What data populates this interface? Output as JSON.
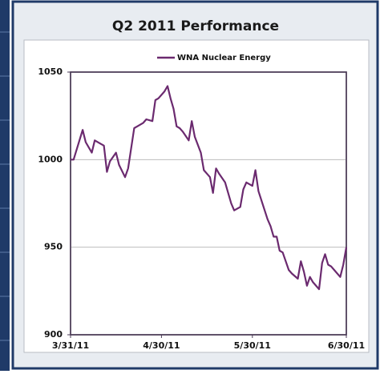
{
  "chart_data": {
    "type": "line",
    "title": "Q2 2011 Performance",
    "x": [
      "3/31/11",
      "4/1/11",
      "4/4/11",
      "4/5/11",
      "4/7/11",
      "4/8/11",
      "4/10/11",
      "4/11/11",
      "4/12/11",
      "4/13/11",
      "4/15/11",
      "4/16/11",
      "4/18/11",
      "4/19/11",
      "4/21/11",
      "4/22/11",
      "4/24/11",
      "4/25/11",
      "4/27/11",
      "4/28/11",
      "4/29/11",
      "5/1/11",
      "5/2/11",
      "5/3/11",
      "5/4/11",
      "5/5/11",
      "5/6/11",
      "5/7/11",
      "5/9/11",
      "5/10/11",
      "5/11/11",
      "5/13/11",
      "5/14/11",
      "5/15/11",
      "5/16/11",
      "5/17/11",
      "5/18/11",
      "5/19/11",
      "5/21/11",
      "5/23/11",
      "5/24/11",
      "5/26/11",
      "5/27/11",
      "5/28/11",
      "5/29/11",
      "5/30/11",
      "5/31/11",
      "6/1/11",
      "6/4/11",
      "6/5/11",
      "6/6/11",
      "6/7/11",
      "6/8/11",
      "6/9/11",
      "6/11/11",
      "6/12/11",
      "6/14/11",
      "6/15/11",
      "6/16/11",
      "6/17/11",
      "6/18/11",
      "6/19/11",
      "6/21/11",
      "6/22/11",
      "6/23/11",
      "6/24/11",
      "6/25/11",
      "6/26/11",
      "6/28/11",
      "6/29/11",
      "6/30/11"
    ],
    "series": [
      {
        "name": "WNA Nuclear Energy",
        "color": "#6b2a6f",
        "values": [
          1000,
          1000,
          1017,
          1010,
          1004,
          1011,
          1009,
          1008,
          993,
          999,
          1004,
          997,
          990,
          995,
          1018,
          1019,
          1021,
          1023,
          1022,
          1034,
          1035,
          1039,
          1042,
          1035,
          1029,
          1019,
          1018,
          1016,
          1011,
          1022,
          1013,
          1004,
          994,
          992,
          990,
          981,
          995,
          992,
          987,
          975,
          971,
          973,
          983,
          987,
          986,
          985,
          994,
          982,
          966,
          962,
          956,
          956,
          948,
          947,
          937,
          935,
          932,
          942,
          936,
          928,
          933,
          930,
          926,
          941,
          946,
          940,
          939,
          937,
          933,
          940,
          950
        ]
      }
    ],
    "xlim": [
      "3/31/11",
      "6/30/11"
    ],
    "xticks": [
      "3/31/11",
      "4/30/11",
      "5/30/11",
      "6/30/11"
    ],
    "ylim": [
      900,
      1050
    ],
    "yticks": [
      900,
      950,
      1000,
      1050
    ],
    "grid": true,
    "legend": "top"
  }
}
